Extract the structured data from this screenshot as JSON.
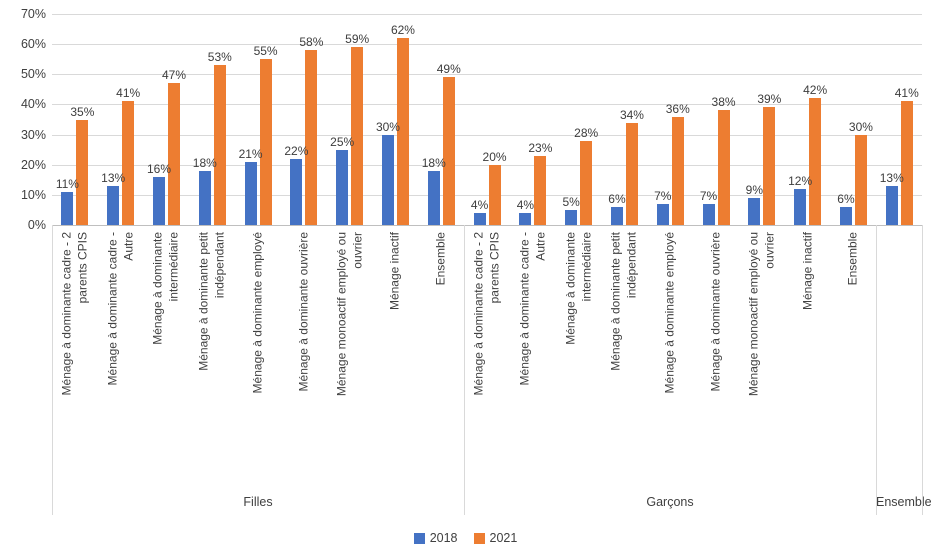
{
  "chart_data": {
    "type": "bar",
    "title": "",
    "y_axis": {
      "min": 0,
      "max": 70,
      "step": 10,
      "tick_labels": [
        "0%",
        "10%",
        "20%",
        "30%",
        "40%",
        "50%",
        "60%",
        "70%"
      ],
      "grid": true
    },
    "value_suffix": "%",
    "series_names": [
      "2018",
      "2021"
    ],
    "series_colors": [
      "#4472C4",
      "#ED7D31"
    ],
    "legend": {
      "position": "bottom",
      "entries": [
        "2018",
        "2021"
      ]
    },
    "groups": [
      {
        "label": "Filles",
        "categories": [
          "Ménage à dominante cadre - 2\nparents CPIS",
          "Ménage à dominante cadre -\nAutre",
          "Ménage à dominante\nintermédiaire",
          "Ménage à dominante petit\nindépendant",
          "Ménage à dominante employé",
          "Ménage à dominante ouvrière",
          "Ménage monoactif employé ou\nouvrier",
          "Ménage inactif",
          "Ensemble"
        ],
        "series": [
          {
            "name": "2018",
            "values": [
              11,
              13,
              16,
              18,
              21,
              22,
              25,
              30,
              18
            ]
          },
          {
            "name": "2021",
            "values": [
              35,
              41,
              47,
              53,
              55,
              58,
              59,
              62,
              49
            ]
          }
        ]
      },
      {
        "label": "Garçons",
        "categories": [
          "Ménage à dominante cadre - 2\nparents CPIS",
          "Ménage à dominante cadre -\nAutre",
          "Ménage à dominante\nintermédiaire",
          "Ménage à dominante petit\nindépendant",
          "Ménage à dominante employé",
          "Ménage à dominante ouvrière",
          "Ménage monoactif employé ou\nouvrier",
          "Ménage inactif",
          "Ensemble"
        ],
        "series": [
          {
            "name": "2018",
            "values": [
              4,
              4,
              5,
              6,
              7,
              7,
              9,
              12,
              6
            ]
          },
          {
            "name": "2021",
            "values": [
              20,
              23,
              28,
              34,
              36,
              38,
              39,
              42,
              30
            ]
          }
        ]
      },
      {
        "label": "Ensemble",
        "categories": [
          ""
        ],
        "series": [
          {
            "name": "2018",
            "values": [
              13
            ]
          },
          {
            "name": "2021",
            "values": [
              41
            ]
          }
        ]
      }
    ]
  }
}
